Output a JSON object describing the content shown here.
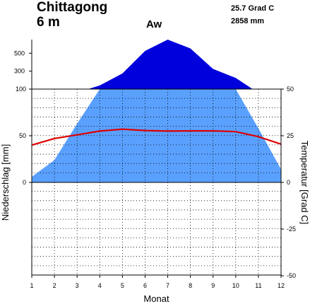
{
  "chart_data": {
    "type": "area",
    "station": "Chittagong",
    "elevation": "6 m",
    "mean_temperature": "25.7 Grad C",
    "annual_precipitation": "2858 mm",
    "climate_class": "Aw",
    "xlabel": "Monat",
    "ylabel_left": "Niederschlag [mm]",
    "ylabel_right": "Temperatur [Grad C]",
    "x": [
      1,
      2,
      3,
      4,
      5,
      6,
      7,
      8,
      9,
      10,
      11,
      12
    ],
    "x_ticks": [
      "1",
      "2",
      "3",
      "4",
      "5",
      "6",
      "7",
      "8",
      "9",
      "10",
      "11",
      "12"
    ],
    "y_left_ticks_lower": [
      "0",
      "50",
      "100"
    ],
    "y_left_ticks_upper": [
      "300",
      "500"
    ],
    "y_right_ticks": [
      "-50",
      "-25",
      "0",
      "25",
      "50"
    ],
    "series": [
      {
        "key": "precipitation",
        "unit": "mm",
        "values": [
          6,
          24,
          63,
          140,
          274,
          526,
          652,
          553,
          325,
          224,
          58,
          14
        ]
      },
      {
        "key": "temperature",
        "unit": "Grad C",
        "values": [
          20,
          23.5,
          25.5,
          27.5,
          28.5,
          27.8,
          27.5,
          27.6,
          27.6,
          27.2,
          24.5,
          20.5
        ]
      }
    ],
    "colors": {
      "humid": "#5aa0ff",
      "perhumid": "#0000dd",
      "temperature": "#dd0000"
    },
    "grid": true
  }
}
